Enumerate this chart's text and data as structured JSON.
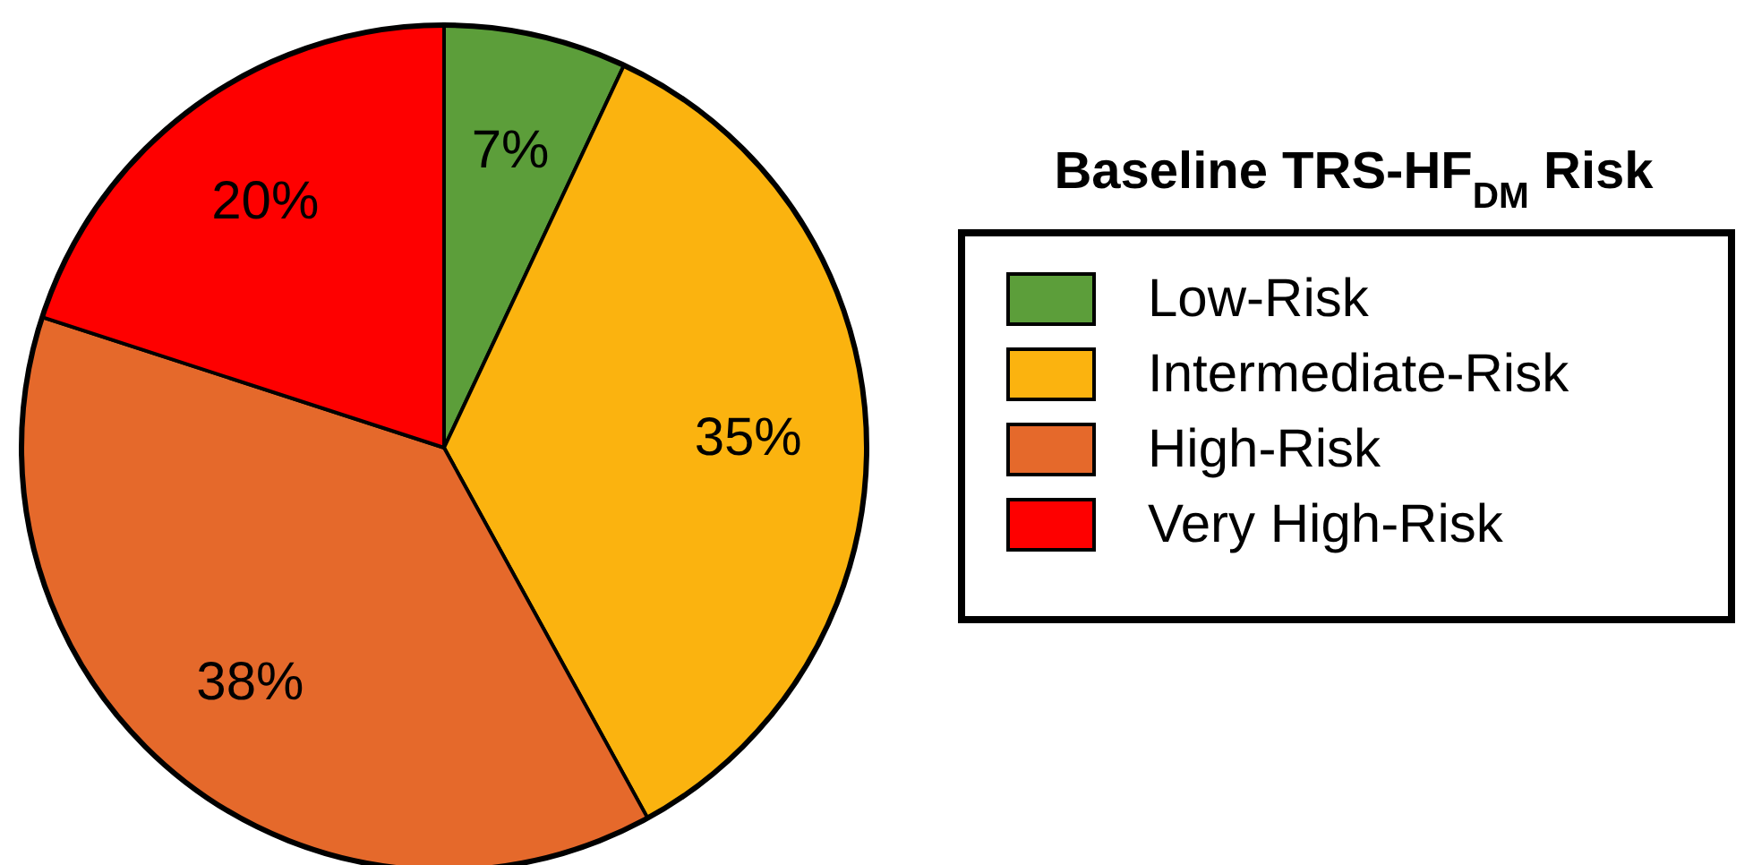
{
  "chart_data": {
    "type": "pie",
    "legend_title": "Baseline TRS-HF$_{DM}$ Risk",
    "categories": [
      "Low-Risk",
      "Intermediate-Risk",
      "High-Risk",
      "Very High-Risk"
    ],
    "values": [
      7,
      35,
      38,
      20
    ],
    "colors": [
      "#5c9e3a",
      "#fbb30f",
      "#e5692b",
      "#fe0000"
    ],
    "value_labels": [
      "7%",
      "35%",
      "38%",
      "20%"
    ],
    "legend": "right"
  }
}
